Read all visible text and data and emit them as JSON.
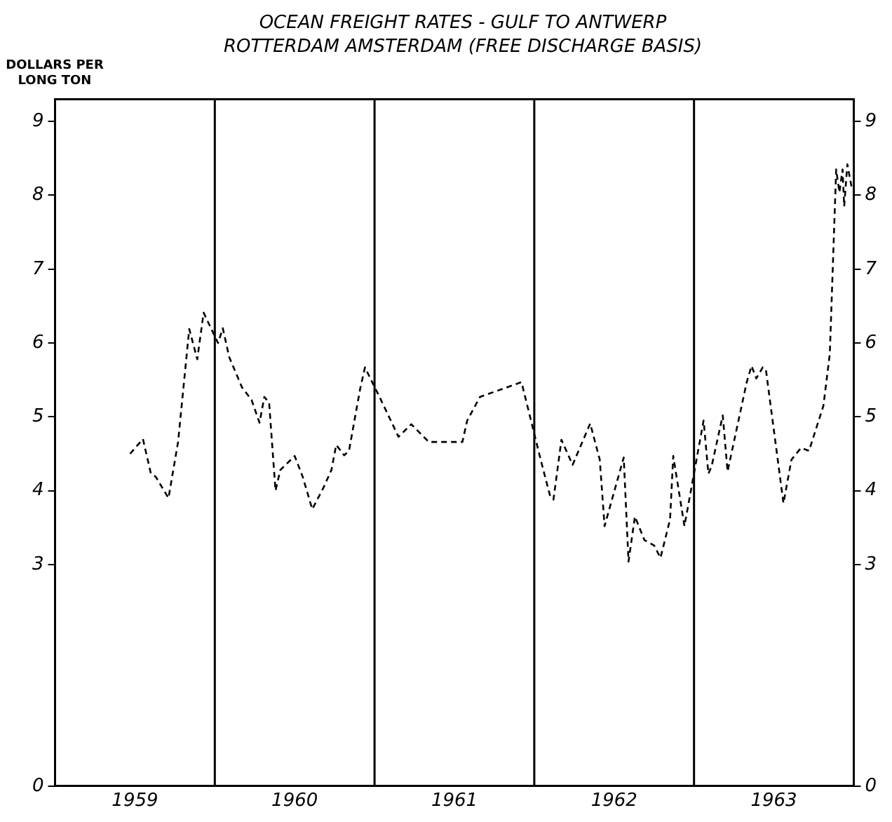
{
  "chart_data": {
    "type": "line",
    "title": "OCEAN FREIGHT RATES - GULF TO ANTWERP ROTTERDAM AMSTERDAM (FREE DISCHARGE BASIS)",
    "ylabel": "DOLLARS PER LONG TON",
    "x": [
      1959.47,
      1959.55,
      1959.6,
      1959.63,
      1959.71,
      1959.77,
      1959.84,
      1959.89,
      1959.93,
      1960.02,
      1960.05,
      1960.09,
      1960.17,
      1960.23,
      1960.28,
      1960.31,
      1960.34,
      1960.38,
      1960.41,
      1960.5,
      1960.55,
      1960.61,
      1960.68,
      1960.73,
      1960.76,
      1960.81,
      1960.84,
      1960.91,
      1960.94,
      1961.04,
      1961.15,
      1961.23,
      1961.34,
      1961.55,
      1961.58,
      1961.66,
      1961.92,
      1962.04,
      1962.1,
      1962.12,
      1962.17,
      1962.24,
      1962.35,
      1962.41,
      1962.44,
      1962.56,
      1962.59,
      1962.63,
      1962.69,
      1962.75,
      1962.79,
      1962.85,
      1962.87,
      1962.94,
      1963.06,
      1963.09,
      1963.11,
      1963.18,
      1963.21,
      1963.33,
      1963.36,
      1963.39,
      1963.43,
      1963.45,
      1963.56,
      1963.61,
      1963.67,
      1963.72,
      1963.81,
      1963.85,
      1963.89,
      1963.91,
      1963.93,
      1963.94,
      1963.96,
      1963.99
    ],
    "series": [
      {
        "color": "#000000",
        "values": [
          4.5,
          4.7,
          4.23,
          4.19,
          3.9,
          4.66,
          6.19,
          5.78,
          6.41,
          6.0,
          6.2,
          5.81,
          5.4,
          5.23,
          4.92,
          5.27,
          5.19,
          4.0,
          4.28,
          4.47,
          4.19,
          3.75,
          4.04,
          4.28,
          4.62,
          4.48,
          4.54,
          5.38,
          5.67,
          5.23,
          4.73,
          4.9,
          4.66,
          4.66,
          4.95,
          5.27,
          5.47,
          4.42,
          3.92,
          3.88,
          4.69,
          4.35,
          4.91,
          4.42,
          3.52,
          4.45,
          3.04,
          3.65,
          3.33,
          3.26,
          3.09,
          3.61,
          4.47,
          3.52,
          4.95,
          4.23,
          4.33,
          5.02,
          4.26,
          5.47,
          5.69,
          5.52,
          5.67,
          5.64,
          3.83,
          4.42,
          4.58,
          4.54,
          5.15,
          5.85,
          8.35,
          8.04,
          8.35,
          7.85,
          8.42,
          8.07
        ]
      }
    ],
    "xlim": [
      1959,
      1964
    ],
    "xticks": [
      {
        "value": 1959.5,
        "label": "1959"
      },
      {
        "value": 1960.5,
        "label": "1960"
      },
      {
        "value": 1961.5,
        "label": "1961"
      },
      {
        "value": 1962.5,
        "label": "1962"
      },
      {
        "value": 1963.5,
        "label": "1963"
      }
    ],
    "ylim": [
      0,
      9.3
    ],
    "yticks": [
      0,
      3,
      4,
      5,
      6,
      7,
      8,
      9
    ],
    "y2lim": [
      0,
      9.3
    ],
    "y2ticks": [
      0,
      3,
      4,
      5,
      6,
      7,
      8,
      9
    ],
    "ref_lines": [
      {
        "axis": "x",
        "value": 1960,
        "color": "#000000"
      },
      {
        "axis": "x",
        "value": 1961,
        "color": "#000000"
      },
      {
        "axis": "x",
        "value": 1962,
        "color": "#000000"
      },
      {
        "axis": "x",
        "value": 1963,
        "color": "#000000"
      }
    ],
    "grid": false,
    "legend": false,
    "marker": "none",
    "line_style": "dashed"
  }
}
